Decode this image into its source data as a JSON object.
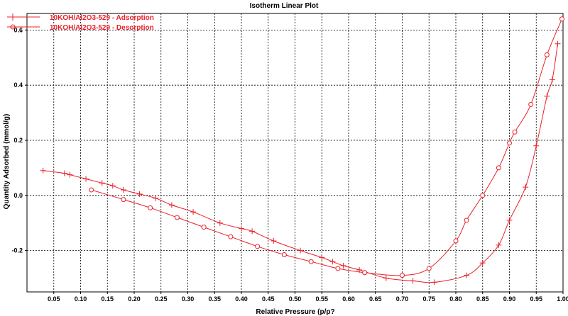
{
  "chart_data": {
    "type": "line",
    "title": "Isotherm Linear Plot",
    "xlabel": "Relative Pressure (p/p?",
    "ylabel": "Quantity Adsorbed (mmol/g)",
    "xlim": [
      0.0,
      1.0
    ],
    "ylim": [
      -0.35,
      0.66
    ],
    "grid": true,
    "legend": "top-left",
    "x_ticks": [
      "0.05",
      "0.10",
      "0.15",
      "0.20",
      "0.25",
      "0.30",
      "0.35",
      "0.40",
      "0.45",
      "0.50",
      "0.55",
      "0.60",
      "0.65",
      "0.70",
      "0.75",
      "0.80",
      "0.85",
      "0.90",
      "0.95",
      "1.00"
    ],
    "y_ticks": [
      "0.6",
      "0.4",
      "0.2",
      "0.0",
      "-0.2"
    ],
    "series": [
      {
        "name": "10KOH/Al2O3-529 - Adsorption",
        "marker": "plus",
        "color": "#e8202a",
        "x": [
          0.03,
          0.07,
          0.08,
          0.11,
          0.14,
          0.16,
          0.18,
          0.21,
          0.24,
          0.27,
          0.31,
          0.36,
          0.4,
          0.42,
          0.46,
          0.51,
          0.55,
          0.57,
          0.59,
          0.62,
          0.67,
          0.72,
          0.76,
          0.82,
          0.85,
          0.88,
          0.9,
          0.93,
          0.95,
          0.97,
          0.98,
          0.99
        ],
        "y": [
          0.09,
          0.08,
          0.075,
          0.06,
          0.045,
          0.035,
          0.02,
          0.005,
          -0.01,
          -0.035,
          -0.06,
          -0.1,
          -0.12,
          -0.13,
          -0.165,
          -0.2,
          -0.225,
          -0.24,
          -0.255,
          -0.27,
          -0.3,
          -0.31,
          -0.315,
          -0.29,
          -0.245,
          -0.18,
          -0.09,
          0.03,
          0.18,
          0.36,
          0.42,
          0.55
        ]
      },
      {
        "name": "10KOH/Al2O3-529 - Desorption",
        "marker": "circle",
        "color": "#e8202a",
        "x": [
          0.998,
          0.97,
          0.94,
          0.91,
          0.9,
          0.88,
          0.85,
          0.82,
          0.8,
          0.75,
          0.7,
          0.63,
          0.58,
          0.53,
          0.48,
          0.43,
          0.38,
          0.33,
          0.28,
          0.23,
          0.18,
          0.12
        ],
        "y": [
          0.64,
          0.51,
          0.33,
          0.23,
          0.19,
          0.1,
          0.0,
          -0.09,
          -0.165,
          -0.265,
          -0.29,
          -0.28,
          -0.265,
          -0.24,
          -0.215,
          -0.185,
          -0.15,
          -0.115,
          -0.08,
          -0.045,
          -0.015,
          0.02
        ]
      }
    ]
  }
}
